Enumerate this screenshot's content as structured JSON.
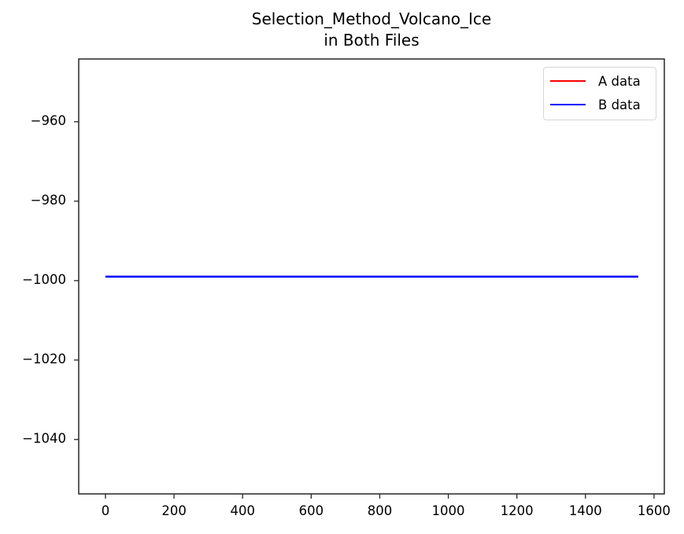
{
  "chart_data": {
    "type": "line",
    "title": "Selection_Method_Volcano_Ice\nin Both Files",
    "title_lines": [
      "Selection_Method_Volcano_Ice",
      "in Both Files"
    ],
    "xlabel": "",
    "ylabel": "",
    "xlim": [
      -78,
      1630
    ],
    "ylim": [
      -1053.7,
      -944.2
    ],
    "x_ticks": [
      0,
      200,
      400,
      600,
      800,
      1000,
      1200,
      1400,
      1600
    ],
    "x_tick_labels": [
      "0",
      "200",
      "400",
      "600",
      "800",
      "1000",
      "1200",
      "1400",
      "1600"
    ],
    "y_ticks": [
      -960,
      -980,
      -1000,
      -1020,
      -1040
    ],
    "y_tick_labels": [
      "−960",
      "−980",
      "−1000",
      "−1020",
      "−1040"
    ],
    "grid": false,
    "legend_position": "upper right",
    "series": [
      {
        "name": "A data",
        "color": "#ff0000",
        "x": [
          0,
          1554
        ],
        "values": [
          -999,
          -999
        ]
      },
      {
        "name": "B data",
        "color": "#0000ff",
        "x": [
          0,
          1554
        ],
        "values": [
          -999,
          -999
        ]
      }
    ]
  },
  "legend": {
    "items": [
      {
        "label": "A data",
        "color": "#ff0000"
      },
      {
        "label": "B data",
        "color": "#0000ff"
      }
    ]
  }
}
